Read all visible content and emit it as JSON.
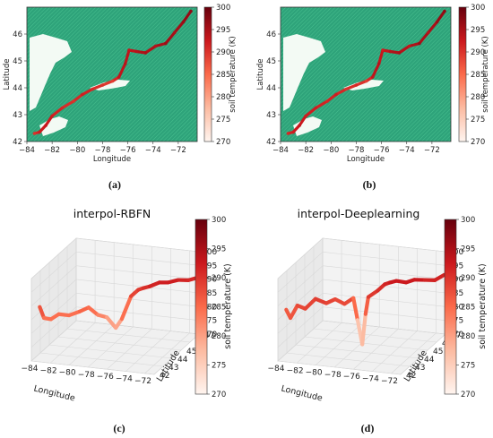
{
  "chart_data": [
    {
      "type": "scatter",
      "panel_label": "(a)",
      "title": "",
      "xlabel": "Longitude",
      "ylabel": "Latitude",
      "xlim": [
        -84,
        -70.5
      ],
      "ylim": [
        42,
        47
      ],
      "xticks": [
        "−84",
        "−82",
        "−80",
        "−78",
        "−76",
        "−74",
        "−72"
      ],
      "yticks": [
        "42",
        "43",
        "44",
        "45",
        "46"
      ],
      "colorbar": {
        "label": "soil temperature (K)",
        "ticks": [
          "270",
          "275",
          "280",
          "285",
          "290",
          "295",
          "300"
        ],
        "range": [
          270,
          300
        ],
        "colormap": "Reds"
      },
      "background_color": "#2ea37a",
      "track": [
        {
          "x": -83.4,
          "y": 42.3,
          "t": 290
        },
        {
          "x": -83.0,
          "y": 42.35,
          "t": 292
        },
        {
          "x": -82.5,
          "y": 42.6,
          "t": 293
        },
        {
          "x": -82.0,
          "y": 42.95,
          "t": 292
        },
        {
          "x": -81.2,
          "y": 43.25,
          "t": 291
        },
        {
          "x": -80.3,
          "y": 43.5,
          "t": 290
        },
        {
          "x": -79.6,
          "y": 43.75,
          "t": 292
        },
        {
          "x": -78.8,
          "y": 43.95,
          "t": 291
        },
        {
          "x": -78.0,
          "y": 44.1,
          "t": 290
        },
        {
          "x": -77.2,
          "y": 44.25,
          "t": 289
        },
        {
          "x": -76.7,
          "y": 44.4,
          "t": 293
        },
        {
          "x": -76.2,
          "y": 44.9,
          "t": 294
        },
        {
          "x": -75.9,
          "y": 45.4,
          "t": 293
        },
        {
          "x": -75.3,
          "y": 45.35,
          "t": 294
        },
        {
          "x": -74.6,
          "y": 45.3,
          "t": 295
        },
        {
          "x": -73.8,
          "y": 45.55,
          "t": 294
        },
        {
          "x": -73.0,
          "y": 45.65,
          "t": 296
        },
        {
          "x": -72.3,
          "y": 46.05,
          "t": 295
        },
        {
          "x": -71.6,
          "y": 46.45,
          "t": 296
        },
        {
          "x": -71.0,
          "y": 46.85,
          "t": 297
        }
      ]
    },
    {
      "type": "scatter",
      "panel_label": "(b)",
      "title": "",
      "xlabel": "Longitude",
      "ylabel": "Latitude",
      "xlim": [
        -84,
        -70.5
      ],
      "ylim": [
        42,
        47
      ],
      "xticks": [
        "−84",
        "−82",
        "−80",
        "−78",
        "−76",
        "−74",
        "−72"
      ],
      "yticks": [
        "42",
        "43",
        "44",
        "45",
        "46"
      ],
      "colorbar": {
        "label": "soil temperature (K)",
        "ticks": [
          "270",
          "275",
          "280",
          "285",
          "290",
          "295",
          "300"
        ],
        "range": [
          270,
          300
        ],
        "colormap": "Reds"
      },
      "background_color": "#2ea37a",
      "track": [
        {
          "x": -83.4,
          "y": 42.3,
          "t": 291
        },
        {
          "x": -83.0,
          "y": 42.35,
          "t": 292
        },
        {
          "x": -82.5,
          "y": 42.6,
          "t": 293
        },
        {
          "x": -82.0,
          "y": 42.95,
          "t": 292
        },
        {
          "x": -81.2,
          "y": 43.25,
          "t": 292
        },
        {
          "x": -80.3,
          "y": 43.5,
          "t": 291
        },
        {
          "x": -79.6,
          "y": 43.75,
          "t": 292
        },
        {
          "x": -78.8,
          "y": 43.95,
          "t": 290
        },
        {
          "x": -78.0,
          "y": 44.1,
          "t": 291
        },
        {
          "x": -77.2,
          "y": 44.25,
          "t": 289
        },
        {
          "x": -76.7,
          "y": 44.4,
          "t": 293
        },
        {
          "x": -76.2,
          "y": 44.9,
          "t": 294
        },
        {
          "x": -75.9,
          "y": 45.4,
          "t": 292
        },
        {
          "x": -75.3,
          "y": 45.35,
          "t": 294
        },
        {
          "x": -74.6,
          "y": 45.3,
          "t": 295
        },
        {
          "x": -73.8,
          "y": 45.55,
          "t": 293
        },
        {
          "x": -73.0,
          "y": 45.65,
          "t": 296
        },
        {
          "x": -72.3,
          "y": 46.05,
          "t": 294
        },
        {
          "x": -71.6,
          "y": 46.45,
          "t": 296
        },
        {
          "x": -71.0,
          "y": 46.85,
          "t": 297
        }
      ]
    },
    {
      "type": "line",
      "panel_label": "(c)",
      "title": "interpol-RBFN",
      "xlabel": "Longitude",
      "ylabel": "Latitude",
      "zlabel": "",
      "xticks": [
        "−84",
        "−82",
        "−80",
        "−78",
        "−76",
        "−74",
        "−72"
      ],
      "yticks": [
        "42",
        "43",
        "44",
        "45",
        "46",
        "47"
      ],
      "zticks": [
        "270",
        "275",
        "280",
        "285",
        "290",
        "295",
        "300"
      ],
      "zlim": [
        270,
        300
      ],
      "colorbar": {
        "label": "soil temperature (K)",
        "ticks": [
          "270",
          "275",
          "280",
          "285",
          "290",
          "295",
          "300"
        ],
        "range": [
          270,
          300
        ],
        "colormap": "Reds"
      },
      "x": [
        -83.4,
        -83.0,
        -82.5,
        -82.0,
        -81.2,
        -80.3,
        -79.6,
        -78.8,
        -78.0,
        -77.2,
        -76.7,
        -76.2,
        -75.9,
        -75.3,
        -74.6,
        -73.8,
        -73.0,
        -72.3,
        -71.6,
        -71.0
      ],
      "y": [
        42.3,
        42.35,
        42.6,
        42.95,
        43.25,
        43.5,
        43.75,
        43.95,
        44.1,
        44.25,
        44.4,
        44.9,
        45.4,
        45.35,
        45.3,
        45.55,
        45.65,
        46.05,
        46.45,
        46.85
      ],
      "z": [
        289,
        285,
        284,
        285,
        284,
        285,
        286,
        283,
        282,
        278,
        281,
        288,
        289,
        290,
        291,
        292,
        292,
        292,
        291,
        291
      ]
    },
    {
      "type": "line",
      "panel_label": "(d)",
      "title": "interpol-Deeplearning",
      "xlabel": "Longitude",
      "ylabel": "Latitude",
      "zlabel": "",
      "xticks": [
        "−84",
        "−82",
        "−80",
        "−78",
        "−76",
        "−74",
        "−72"
      ],
      "yticks": [
        "42",
        "43",
        "44",
        "45",
        "46",
        "47"
      ],
      "zticks": [
        "270",
        "275",
        "280",
        "285",
        "290",
        "295",
        "300"
      ],
      "zlim": [
        270,
        300
      ],
      "colorbar": {
        "label": "soil temperature (K)",
        "ticks": [
          "270",
          "275",
          "280",
          "285",
          "290",
          "295",
          "300"
        ],
        "range": [
          270,
          300
        ],
        "colormap": "Reds"
      },
      "x": [
        -83.4,
        -83.0,
        -82.5,
        -82.0,
        -81.2,
        -80.3,
        -79.6,
        -78.8,
        -78.0,
        -77.6,
        -77.2,
        -76.9,
        -76.7,
        -76.2,
        -75.9,
        -75.3,
        -74.6,
        -73.8,
        -73.0,
        -72.3,
        -71.6,
        -71.0
      ],
      "y": [
        42.3,
        42.35,
        42.6,
        42.95,
        43.25,
        43.5,
        43.75,
        43.95,
        44.1,
        44.15,
        44.25,
        44.3,
        44.4,
        44.9,
        45.4,
        45.35,
        45.3,
        45.55,
        45.65,
        46.05,
        46.45,
        46.85
      ],
      "z": [
        288,
        285,
        289,
        287,
        290,
        288,
        289,
        287,
        289,
        281,
        272,
        283,
        289,
        290,
        291,
        292,
        293,
        292,
        293,
        292,
        291,
        292
      ]
    }
  ]
}
